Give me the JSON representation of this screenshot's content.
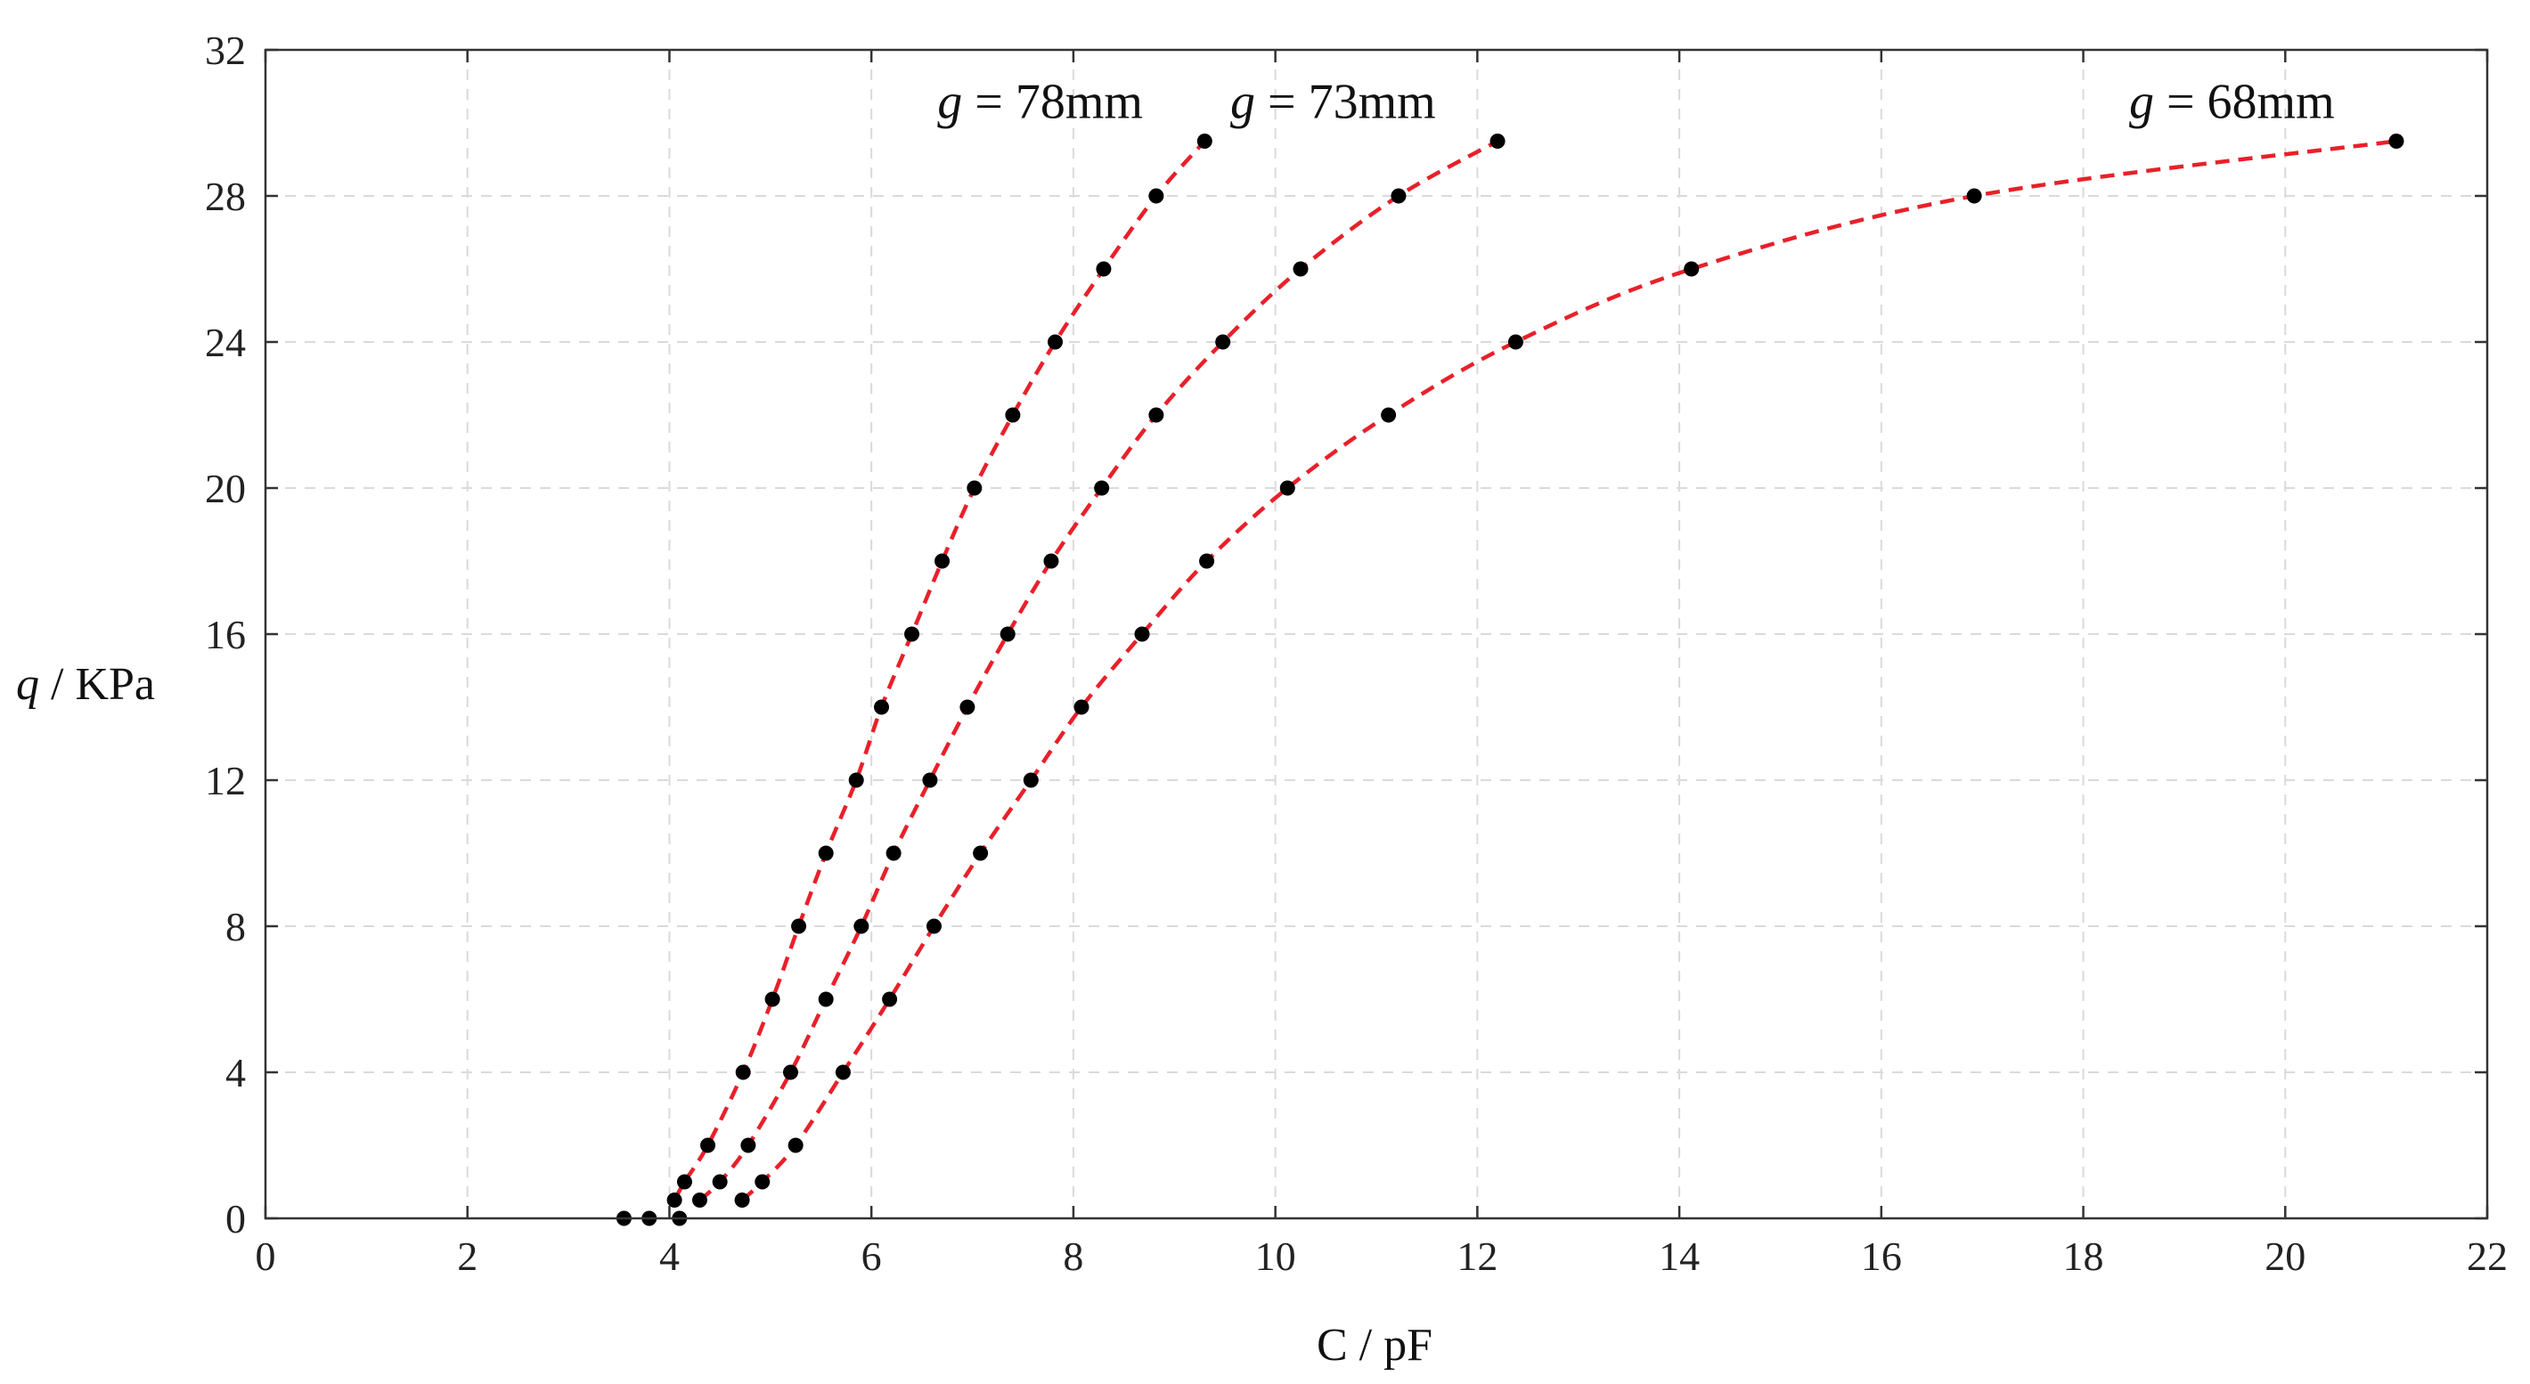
{
  "chart_data": {
    "type": "scatter",
    "title": "",
    "xlabel": "C / pF",
    "ylabel": "q / KPa",
    "xlim": [
      0,
      22
    ],
    "ylim": [
      0,
      32
    ],
    "xticks": [
      "0",
      "2",
      "4",
      "6",
      "8",
      "10",
      "12",
      "14",
      "16",
      "18",
      "20",
      "22"
    ],
    "yticks": [
      "0",
      "4",
      "8",
      "12",
      "16",
      "20",
      "24",
      "28",
      "32"
    ],
    "grid": true,
    "fit_line_color": "#e8202a",
    "marker_color": "#000000",
    "series": [
      {
        "name": "g = 78mm",
        "label_prefix": "g",
        "label_rest": " = 78mm",
        "points": [
          [
            3.55,
            0
          ],
          [
            4.05,
            0.5
          ],
          [
            4.15,
            1
          ],
          [
            4.38,
            2
          ],
          [
            4.73,
            4
          ],
          [
            5.02,
            6
          ],
          [
            5.28,
            8
          ],
          [
            5.55,
            10
          ],
          [
            5.85,
            12
          ],
          [
            6.1,
            14
          ],
          [
            6.4,
            16
          ],
          [
            6.7,
            18
          ],
          [
            7.02,
            20
          ],
          [
            7.4,
            22
          ],
          [
            7.82,
            24
          ],
          [
            8.3,
            26
          ],
          [
            8.82,
            28
          ],
          [
            9.3,
            29.5
          ]
        ]
      },
      {
        "name": "g = 73mm",
        "label_prefix": "g",
        "label_rest": " = 73mm",
        "points": [
          [
            3.8,
            0
          ],
          [
            4.3,
            0.5
          ],
          [
            4.5,
            1
          ],
          [
            4.78,
            2
          ],
          [
            5.2,
            4
          ],
          [
            5.55,
            6
          ],
          [
            5.9,
            8
          ],
          [
            6.22,
            10
          ],
          [
            6.58,
            12
          ],
          [
            6.95,
            14
          ],
          [
            7.35,
            16
          ],
          [
            7.78,
            18
          ],
          [
            8.28,
            20
          ],
          [
            8.82,
            22
          ],
          [
            9.48,
            24
          ],
          [
            10.25,
            26
          ],
          [
            11.22,
            28
          ],
          [
            12.2,
            29.5
          ]
        ]
      },
      {
        "name": "g = 68mm",
        "label_prefix": "g",
        "label_rest": " = 68mm",
        "points": [
          [
            4.1,
            0
          ],
          [
            4.72,
            0.5
          ],
          [
            4.92,
            1
          ],
          [
            5.25,
            2
          ],
          [
            5.72,
            4
          ],
          [
            6.18,
            6
          ],
          [
            6.62,
            8
          ],
          [
            7.08,
            10
          ],
          [
            7.58,
            12
          ],
          [
            8.08,
            14
          ],
          [
            8.68,
            16
          ],
          [
            9.32,
            18
          ],
          [
            10.12,
            20
          ],
          [
            11.12,
            22
          ],
          [
            12.38,
            24
          ],
          [
            14.12,
            26
          ],
          [
            16.92,
            28
          ],
          [
            21.1,
            29.5
          ]
        ]
      }
    ]
  }
}
